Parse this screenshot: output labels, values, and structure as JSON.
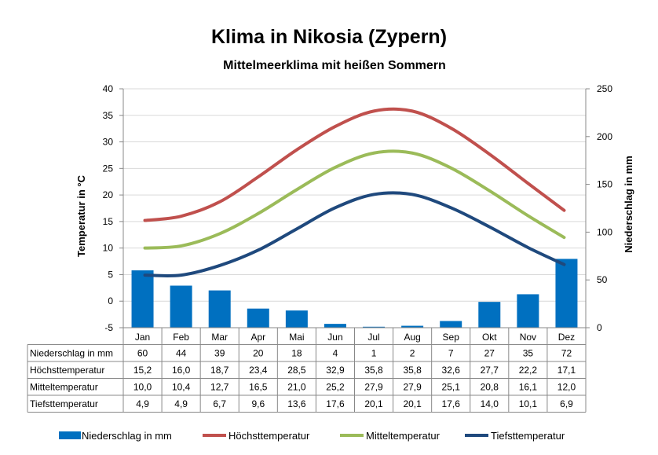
{
  "chart_data": {
    "type": "bar+line",
    "title": "Klima in Nikosia (Zypern)",
    "subtitle": "Mittelmeerklima mit heißen Sommern",
    "ylabel": "Temperatur  in  °C",
    "y2label": "Niederschlag  in  mm",
    "ylim": [
      -5,
      40
    ],
    "yticks": [
      -5,
      0,
      5,
      10,
      15,
      20,
      25,
      30,
      35,
      40
    ],
    "y2lim": [
      0,
      250
    ],
    "y2ticks": [
      0,
      50,
      100,
      150,
      200,
      250
    ],
    "categories": [
      "Jan",
      "Feb",
      "Mar",
      "Apr",
      "Mai",
      "Jun",
      "Jul",
      "Aug",
      "Sep",
      "Okt",
      "Nov",
      "Dez"
    ],
    "series": [
      {
        "name": "Niederschlag in mm",
        "type": "bar",
        "axis": "right",
        "color": "#0070C0",
        "values": [
          60,
          44,
          39,
          20,
          18,
          4,
          1,
          2,
          7,
          27,
          35,
          72
        ],
        "labels": [
          "60",
          "44",
          "39",
          "20",
          "18",
          "4",
          "1",
          "2",
          "7",
          "27",
          "35",
          "72"
        ]
      },
      {
        "name": "Höchsttemperatur",
        "type": "line",
        "axis": "left",
        "color": "#C0504D",
        "values": [
          15.2,
          16.0,
          18.7,
          23.4,
          28.5,
          32.9,
          35.8,
          35.8,
          32.6,
          27.7,
          22.2,
          17.1
        ],
        "labels": [
          "15,2",
          "16,0",
          "18,7",
          "23,4",
          "28,5",
          "32,9",
          "35,8",
          "35,8",
          "32,6",
          "27,7",
          "22,2",
          "17,1"
        ]
      },
      {
        "name": "Mitteltemperatur",
        "type": "line",
        "axis": "left",
        "color": "#9BBB59",
        "values": [
          10.0,
          10.4,
          12.7,
          16.5,
          21.0,
          25.2,
          27.9,
          27.9,
          25.1,
          20.8,
          16.1,
          12.0
        ],
        "labels": [
          "10,0",
          "10,4",
          "12,7",
          "16,5",
          "21,0",
          "25,2",
          "27,9",
          "27,9",
          "25,1",
          "20,8",
          "16,1",
          "12,0"
        ]
      },
      {
        "name": "Tiefsttemperatur",
        "type": "line",
        "axis": "left",
        "color": "#1F497D",
        "values": [
          4.9,
          4.9,
          6.7,
          9.6,
          13.6,
          17.6,
          20.1,
          20.1,
          17.6,
          14.0,
          10.1,
          6.9
        ],
        "labels": [
          "4,9",
          "4,9",
          "6,7",
          "9,6",
          "13,6",
          "17,6",
          "20,1",
          "20,1",
          "17,6",
          "14,0",
          "10,1",
          "6,9"
        ]
      }
    ],
    "legend": "bottom",
    "grid": true
  }
}
